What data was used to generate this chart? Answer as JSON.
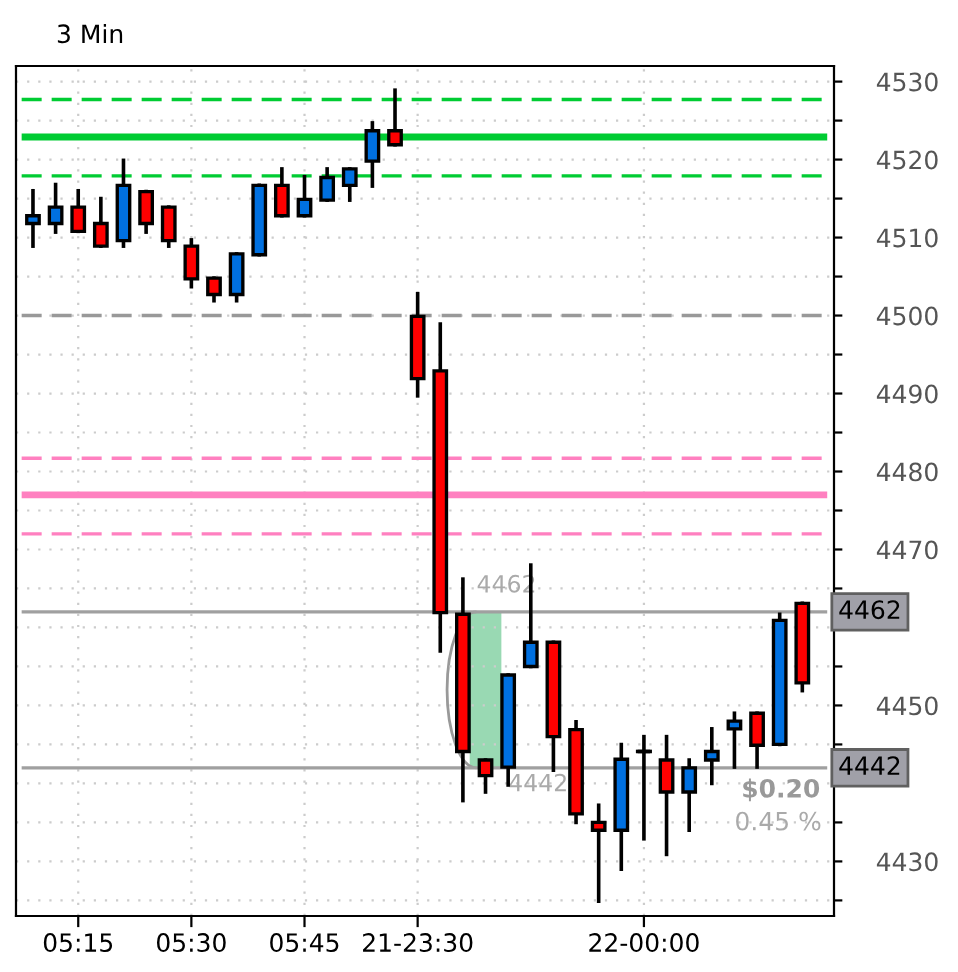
{
  "chart_data": {
    "type": "candlestick",
    "title": "3 Min",
    "categories": [
      null,
      null,
      "05:15",
      null,
      null,
      null,
      null,
      "05:30",
      null,
      null,
      null,
      null,
      "05:45",
      null,
      null,
      null,
      null,
      "21-23:30",
      null,
      null,
      null,
      null,
      null,
      null,
      null,
      null,
      null,
      "22-00:00",
      null,
      null,
      null,
      null,
      null,
      null,
      null
    ],
    "ohlc": [
      [
        4511.8,
        4516.0,
        4508.9,
        4512.8
      ],
      [
        4511.8,
        4516.8,
        4510.7,
        4513.9
      ],
      [
        4513.9,
        4516.0,
        4510.8,
        4510.8
      ],
      [
        4511.8,
        4515.0,
        4508.9,
        4508.9
      ],
      [
        4509.6,
        4519.9,
        4508.9,
        4516.7
      ],
      [
        4515.9,
        4515.9,
        4510.7,
        4511.8
      ],
      [
        4513.9,
        4513.9,
        4508.9,
        4509.6
      ],
      [
        4508.9,
        4509.7,
        4503.7,
        4504.7
      ],
      [
        4504.8,
        4504.8,
        4501.9,
        4502.7
      ],
      [
        4502.7,
        4507.9,
        4501.9,
        4507.9
      ],
      [
        4507.8,
        4516.7,
        4507.8,
        4516.7
      ],
      [
        4516.7,
        4518.8,
        4512.8,
        4512.8
      ],
      [
        4512.8,
        4517.8,
        4512.8,
        4514.9
      ],
      [
        4514.8,
        4518.8,
        4514.8,
        4517.7
      ],
      [
        4516.7,
        4518.8,
        4514.8,
        4518.8
      ],
      [
        4519.8,
        4524.7,
        4516.6,
        4523.7
      ],
      [
        4523.7,
        4528.9,
        4521.9,
        4521.9
      ],
      [
        4499.9,
        4502.8,
        4489.7,
        4491.9
      ],
      [
        4492.9,
        4498.9,
        4457.0,
        4461.9
      ],
      [
        4461.7,
        4466.2,
        4437.8,
        4444.1
      ],
      [
        4443.0,
        4443.0,
        4438.9,
        4441.0
      ],
      [
        4442.1,
        4453.9,
        4439.8,
        4453.9
      ],
      [
        4455.0,
        4468.0,
        4455.0,
        4458.1
      ],
      [
        4458.1,
        4458.1,
        4441.7,
        4446.0
      ],
      [
        4446.9,
        4447.9,
        4435.0,
        4436.1
      ],
      [
        4435.0,
        4437.2,
        4424.9,
        4434.0
      ],
      [
        4434.0,
        4445.0,
        4429.0,
        4443.1
      ],
      [
        4444.1,
        4446.0,
        4432.9,
        4444.1
      ],
      [
        4443.0,
        4446.0,
        4430.9,
        4438.9
      ],
      [
        4438.9,
        4443.0,
        4434.0,
        4442.0
      ],
      [
        4443.0,
        4447.0,
        4440.0,
        4444.1
      ],
      [
        4447.0,
        4449.0,
        4442.1,
        4448.0
      ],
      [
        4449.0,
        4449.0,
        4442.1,
        4444.9
      ],
      [
        4445.0,
        4461.7,
        4445.0,
        4460.9
      ],
      [
        4463.1,
        4463.1,
        4451.9,
        4452.9
      ]
    ],
    "colors": [
      "#0070e0",
      "#0070e0",
      "#ff0000",
      "#ff0000",
      "#0070e0",
      "#ff0000",
      "#ff0000",
      "#ff0000",
      "#ff0000",
      "#0070e0",
      "#0070e0",
      "#ff0000",
      "#0070e0",
      "#0070e0",
      "#0070e0",
      "#0070e0",
      "#ff0000",
      "#ff0000",
      "#ff0000",
      "#ff0000",
      "#ff0000",
      "#0070e0",
      "#0070e0",
      "#ff0000",
      "#ff0000",
      "#ff0000",
      "#0070e0",
      "#000000",
      "#ff0000",
      "#0070e0",
      "#0070e0",
      "#0070e0",
      "#ff0000",
      "#0070e0",
      "#ff0000"
    ],
    "ylim": [
      4423.0,
      4532.0
    ],
    "yticks": [
      {
        "value": 4425,
        "label": null
      },
      4430,
      {
        "value": 4435,
        "label": null
      },
      {
        "value": 4440,
        "label": null
      },
      {
        "value": 4445,
        "label": null
      },
      4450,
      {
        "value": 4455,
        "label": null
      },
      {
        "value": 4460,
        "label": null
      },
      {
        "value": 4465,
        "label": null
      },
      4470,
      {
        "value": 4475,
        "label": null
      },
      4480,
      {
        "value": 4485,
        "label": null
      },
      4490,
      {
        "value": 4495,
        "label": null
      },
      4500,
      {
        "value": 4505,
        "label": null
      },
      4510,
      {
        "value": 4515,
        "label": null
      },
      4520,
      {
        "value": 4525,
        "label": null
      },
      4530
    ],
    "grid": true,
    "ref_lines": [
      {
        "axis": "y",
        "value": 4527.7,
        "color": "#00cc33",
        "line_style": "dashed"
      },
      {
        "axis": "y",
        "value": 4522.9,
        "color": "#00cc33",
        "line_style": "solid"
      },
      {
        "axis": "y",
        "value": 4517.9,
        "color": "#00cc33",
        "line_style": "dashed"
      },
      {
        "axis": "y",
        "value": 4500,
        "color": "#999999",
        "line_style": "dashed"
      },
      {
        "axis": "y",
        "value": 4481.7,
        "color": "#ff80c0",
        "line_style": "dashed"
      },
      {
        "axis": "y",
        "value": 4477.0,
        "color": "#ff80c0",
        "line_style": "solid"
      },
      {
        "axis": "y",
        "value": 4472.0,
        "color": "#ff80c0",
        "line_style": "dashed"
      },
      {
        "axis": "y",
        "value": 4462,
        "label": "4462",
        "color": "#a0a0a0",
        "line_style": "solid"
      },
      {
        "axis": "y",
        "value": 4442,
        "label": "4442",
        "color": "#a0a0a0",
        "line_style": "solid"
      }
    ],
    "annotations": [
      {
        "text": "4462",
        "y": 4462
      },
      {
        "text": "4442",
        "y": 4442
      },
      "$0.20",
      "0.45 %"
    ]
  }
}
